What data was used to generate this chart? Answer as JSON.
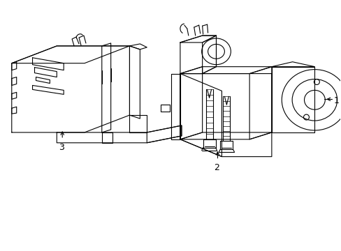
{
  "background_color": "#ffffff",
  "line_color": "#000000",
  "line_width": 0.8,
  "label_1": "1",
  "label_2": "2",
  "label_3": "3",
  "label_fontsize": 9,
  "fig_width": 4.89,
  "fig_height": 3.6,
  "dpi": 100
}
